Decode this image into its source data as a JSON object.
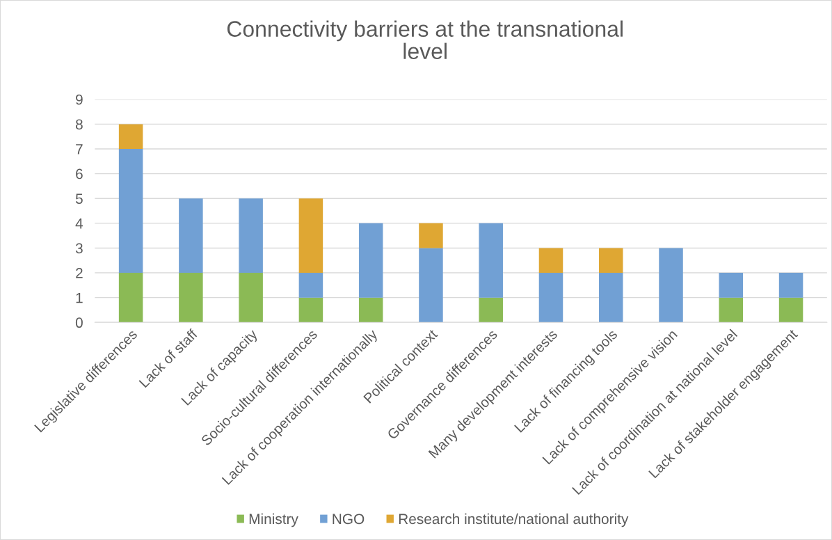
{
  "chart_data": {
    "type": "bar",
    "stacked": true,
    "title": "Connectivity barriers at the transnational\nlevel",
    "categories": [
      "Legislative differences",
      "Lack of staff",
      "Lack of capacity",
      "Socio-cultural differences",
      "Lack of cooperation internationally",
      "Political context",
      "Governance differences",
      "Many development interests",
      "Lack of financing tools",
      "Lack of comprehensive vision",
      "Lack of coordination at national level",
      "Lack of stakeholder engagement"
    ],
    "series": [
      {
        "name": "Ministry",
        "color": "#8bba55",
        "values": [
          2,
          2,
          2,
          1,
          1,
          0,
          1,
          0,
          0,
          0,
          1,
          1
        ]
      },
      {
        "name": "NGO",
        "color": "#71a0d4",
        "values": [
          5,
          3,
          3,
          1,
          3,
          3,
          3,
          2,
          2,
          3,
          1,
          1
        ]
      },
      {
        "name": "Research institute/national authority",
        "color": "#dfa733",
        "values": [
          1,
          0,
          0,
          3,
          0,
          1,
          0,
          1,
          1,
          0,
          0,
          0
        ]
      }
    ],
    "ylim": [
      0,
      9
    ],
    "yticks": [
      0,
      1,
      2,
      3,
      4,
      5,
      6,
      7,
      8,
      9
    ],
    "grid": "y",
    "legend": "bottom"
  }
}
